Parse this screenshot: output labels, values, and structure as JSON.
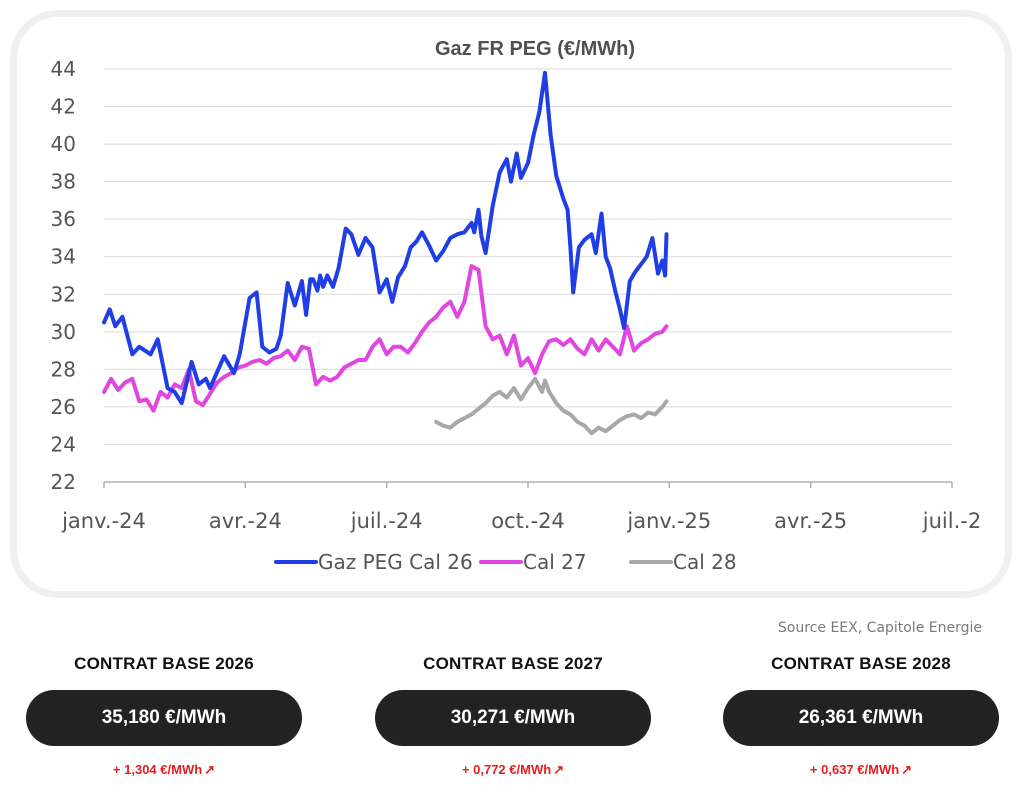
{
  "chart_data": {
    "type": "line",
    "title": "Gaz FR PEG (€/MWh)",
    "xlabel": "",
    "ylabel": "",
    "ylim": [
      22,
      44
    ],
    "yticks": [
      22,
      24,
      26,
      28,
      30,
      32,
      34,
      36,
      38,
      40,
      42,
      44
    ],
    "x_tick_labels": [
      "janv.-24",
      "avr.-24",
      "juil.-24",
      "oct.-24",
      "janv.-25",
      "avr.-25",
      "juil.-2"
    ],
    "grid": "horizontal",
    "legend_position": "bottom",
    "series": [
      {
        "name": "Gaz PEG Cal 26",
        "color": "#1f3ee6",
        "x": [
          0,
          0.04,
          0.08,
          0.13,
          0.2,
          0.25,
          0.33,
          0.38,
          0.45,
          0.5,
          0.55,
          0.62,
          0.67,
          0.72,
          0.75,
          0.85,
          0.92,
          0.96,
          1.0,
          1.03,
          1.08,
          1.12,
          1.17,
          1.22,
          1.25,
          1.3,
          1.35,
          1.4,
          1.43,
          1.46,
          1.48,
          1.51,
          1.53,
          1.55,
          1.58,
          1.62,
          1.66,
          1.71,
          1.75,
          1.8,
          1.85,
          1.9,
          1.95,
          2.0,
          2.04,
          2.08,
          2.13,
          2.17,
          2.21,
          2.25,
          2.3,
          2.35,
          2.4,
          2.45,
          2.5,
          2.55,
          2.6,
          2.62,
          2.65,
          2.67,
          2.7,
          2.75,
          2.8,
          2.85,
          2.88,
          2.92,
          2.95,
          3.0,
          3.04,
          3.08,
          3.12,
          3.16,
          3.2,
          3.25,
          3.28,
          3.3,
          3.32,
          3.36,
          3.4,
          3.45,
          3.48,
          3.52,
          3.55,
          3.58,
          3.62,
          3.65,
          3.68,
          3.72,
          3.76,
          3.8,
          3.84,
          3.88,
          3.92,
          3.95,
          3.97,
          3.98
        ],
        "values": [
          30.5,
          31.2,
          30.3,
          30.8,
          28.8,
          29.2,
          28.8,
          29.6,
          27.0,
          26.8,
          26.2,
          28.4,
          27.2,
          27.5,
          27.0,
          28.7,
          27.8,
          28.8,
          30.5,
          31.8,
          32.1,
          29.2,
          28.9,
          29.1,
          29.8,
          32.6,
          31.4,
          32.7,
          30.9,
          32.8,
          32.8,
          32.2,
          33.0,
          32.4,
          33.0,
          32.4,
          33.4,
          35.5,
          35.2,
          34.1,
          35.0,
          34.5,
          32.1,
          32.8,
          31.6,
          32.9,
          33.5,
          34.5,
          34.8,
          35.3,
          34.6,
          33.8,
          34.3,
          35.0,
          35.2,
          35.3,
          35.8,
          35.3,
          36.5,
          35.1,
          34.2,
          36.7,
          38.5,
          39.2,
          38.0,
          39.5,
          38.2,
          39.0,
          40.5,
          41.7,
          43.8,
          40.5,
          38.3,
          37.1,
          36.5,
          34.5,
          32.1,
          34.5,
          34.9,
          35.2,
          34.2,
          36.3,
          34.0,
          33.4,
          32.1,
          31.2,
          30.2,
          32.7,
          33.2,
          33.6,
          34.0,
          35.0,
          33.1,
          33.8,
          33.0,
          35.2
        ]
      },
      {
        "name": "Cal 27",
        "color": "#e046e0",
        "x": [
          0,
          0.05,
          0.1,
          0.15,
          0.2,
          0.25,
          0.3,
          0.35,
          0.4,
          0.45,
          0.5,
          0.55,
          0.6,
          0.65,
          0.7,
          0.75,
          0.8,
          0.85,
          0.9,
          0.95,
          1.0,
          1.05,
          1.1,
          1.15,
          1.2,
          1.25,
          1.3,
          1.35,
          1.4,
          1.45,
          1.5,
          1.55,
          1.6,
          1.65,
          1.7,
          1.75,
          1.8,
          1.85,
          1.9,
          1.95,
          2.0,
          2.05,
          2.1,
          2.15,
          2.2,
          2.25,
          2.3,
          2.35,
          2.4,
          2.45,
          2.5,
          2.55,
          2.6,
          2.65,
          2.7,
          2.75,
          2.8,
          2.85,
          2.9,
          2.95,
          3.0,
          3.05,
          3.1,
          3.12,
          3.15,
          3.2,
          3.25,
          3.3,
          3.35,
          3.4,
          3.45,
          3.5,
          3.55,
          3.6,
          3.65,
          3.7,
          3.75,
          3.8,
          3.85,
          3.9,
          3.95,
          3.98
        ],
        "values": [
          26.8,
          27.5,
          26.9,
          27.3,
          27.5,
          26.3,
          26.4,
          25.8,
          26.8,
          26.5,
          27.2,
          27.0,
          28.0,
          26.3,
          26.1,
          26.7,
          27.3,
          27.6,
          27.8,
          28.1,
          28.2,
          28.4,
          28.5,
          28.3,
          28.6,
          28.7,
          29.0,
          28.5,
          29.2,
          29.1,
          27.2,
          27.6,
          27.4,
          27.6,
          28.1,
          28.3,
          28.5,
          28.5,
          29.2,
          29.6,
          28.8,
          29.2,
          29.2,
          28.9,
          29.4,
          30.0,
          30.5,
          30.8,
          31.3,
          31.6,
          30.8,
          31.6,
          33.5,
          33.3,
          30.3,
          29.6,
          29.8,
          28.8,
          29.8,
          28.2,
          28.6,
          27.8,
          28.8,
          29.1,
          29.5,
          29.6,
          29.3,
          29.6,
          29.1,
          28.8,
          29.6,
          29.0,
          29.6,
          29.2,
          28.8,
          30.3,
          29.0,
          29.4,
          29.6,
          29.9,
          30.0,
          30.3
        ]
      },
      {
        "name": "Cal 28",
        "color": "#a8a8a8",
        "x": [
          2.35,
          2.4,
          2.45,
          2.5,
          2.55,
          2.6,
          2.65,
          2.7,
          2.75,
          2.8,
          2.85,
          2.9,
          2.95,
          3.0,
          3.05,
          3.1,
          3.12,
          3.15,
          3.2,
          3.25,
          3.3,
          3.35,
          3.4,
          3.45,
          3.5,
          3.55,
          3.6,
          3.65,
          3.7,
          3.75,
          3.8,
          3.85,
          3.9,
          3.95,
          3.98
        ],
        "values": [
          25.2,
          25.0,
          24.9,
          25.2,
          25.4,
          25.6,
          25.9,
          26.2,
          26.6,
          26.8,
          26.5,
          27.0,
          26.4,
          27.0,
          27.5,
          26.8,
          27.4,
          26.8,
          26.2,
          25.8,
          25.6,
          25.2,
          25.0,
          24.6,
          24.9,
          24.7,
          25.0,
          25.3,
          25.5,
          25.6,
          25.4,
          25.7,
          25.6,
          26.0,
          26.3
        ]
      }
    ]
  },
  "source_note": "Source EEX, Capitole Energie",
  "contracts": [
    {
      "title": "CONTRAT BASE 2026",
      "price": "35,180 €/MWh",
      "change": "+ 1,304 €/MWh"
    },
    {
      "title": "CONTRAT BASE 2027",
      "price": "30,271 €/MWh",
      "change": "+ 0,772 €/MWh"
    },
    {
      "title": "CONTRAT BASE 2028",
      "price": "26,361 €/MWh",
      "change": "+ 0,637 €/MWh"
    }
  ],
  "colors": {
    "change_text": "#e51e1e",
    "pill_background": "#222222",
    "card_border": "#f0f0f0"
  },
  "icons": {
    "change_arrow": "arrow-up-right-icon"
  }
}
